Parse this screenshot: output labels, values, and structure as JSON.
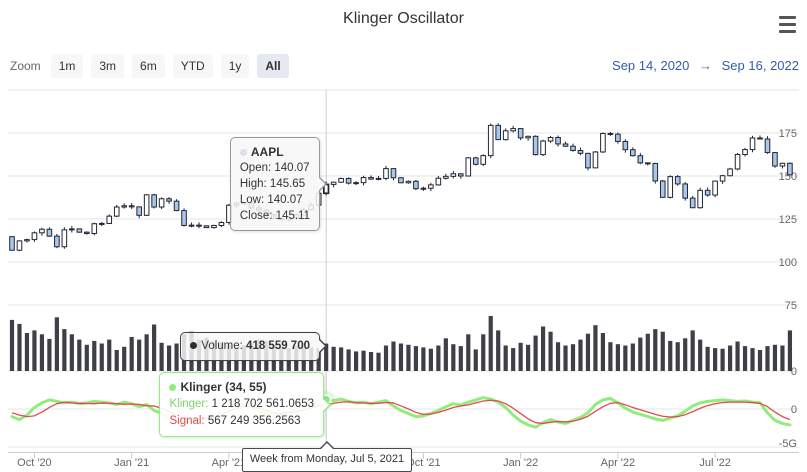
{
  "header": {
    "title": "Klinger Oscillator"
  },
  "toolbar": {
    "zoom_label": "Zoom",
    "buttons": [
      {
        "label": "1m",
        "selected": false
      },
      {
        "label": "3m",
        "selected": false
      },
      {
        "label": "6m",
        "selected": false
      },
      {
        "label": "YTD",
        "selected": false
      },
      {
        "label": "1y",
        "selected": false
      },
      {
        "label": "All",
        "selected": true
      }
    ],
    "range_from": "Sep 14, 2020",
    "range_separator": "→",
    "range_to": "Sep 16, 2022"
  },
  "tooltips": {
    "price": {
      "series": "AAPL",
      "open_label": "Open:",
      "open_value": "140.07",
      "high_label": "High:",
      "high_value": "145.65",
      "low_label": "Low:",
      "low_value": "140.07",
      "close_label": "Close:",
      "close_value": "145.11"
    },
    "volume": {
      "label": "Volume:",
      "value": "418 559 700"
    },
    "klinger": {
      "title": "Klinger (34, 55)",
      "klinger_label": "Klinger:",
      "klinger_value": "1 218 702 561.0653",
      "signal_label": "Signal:",
      "signal_value": "567 249 356.2563"
    },
    "xlabel": "Week from Monday, Jul 5, 2021"
  },
  "axes": {
    "price_labels": [
      {
        "text": "175",
        "value": 175
      },
      {
        "text": "150",
        "value": 150
      },
      {
        "text": "125",
        "value": 125
      },
      {
        "text": "100",
        "value": 100
      },
      {
        "text": "75",
        "value": 75
      }
    ],
    "volume_labels": [
      {
        "text": "0",
        "value": 0
      }
    ],
    "klinger_labels": [
      {
        "text": "0",
        "value": 0
      },
      {
        "text": "-5G",
        "value": -5
      }
    ],
    "x_labels": [
      {
        "text": "Oct '20",
        "week": 3
      },
      {
        "text": "Jan '21",
        "week": 16
      },
      {
        "text": "Apr '21",
        "week": 29
      },
      {
        "text": "Jul '21",
        "week": 42
      },
      {
        "text": "Oct '21",
        "week": 55
      },
      {
        "text": "Jan '22",
        "week": 68
      },
      {
        "text": "Apr '22",
        "week": 81
      },
      {
        "text": "Jul '22",
        "week": 94
      }
    ]
  },
  "colors": {
    "accent_blue": "#335cad",
    "candle_up_fill": "#ffffff",
    "candle_down_fill": "#a6c8ee",
    "candle_line": "#222633",
    "volume_bar": "#3f4047",
    "klinger_green": "#90ed7d",
    "signal_red": "#e24c4c",
    "grid": "#e6e6e6",
    "crosshair": "#cccccc",
    "axis_line": "#c7ccd6",
    "axis_label": "#666666"
  },
  "chart_data": {
    "type": "candlestick",
    "title": "Klinger Oscillator",
    "frequency": "weekly",
    "x_range": [
      "2020-09-14",
      "2022-09-16"
    ],
    "highlighted_index": 42,
    "highlighted_point": {
      "open": 140.07,
      "high": 145.65,
      "low": 140.07,
      "close": 145.11,
      "volume": 418559700,
      "klinger": 1218702561.0653,
      "signal": 567249356.2563
    },
    "price_axis_ticks": [
      75,
      100,
      125,
      150,
      175
    ],
    "klinger_axis_ticks": [
      0,
      -5000000000
    ],
    "series": [
      {
        "name": "AAPL",
        "type": "candlestick",
        "first_open": 114.72,
        "closes": [
          106.84,
          112.28,
          113.02,
          116.97,
          119.02,
          115.04,
          108.86,
          118.69,
          119.26,
          117.34,
          116.59,
          122.25,
          122.41,
          126.66,
          131.97,
          132.69,
          132.05,
          127.14,
          139.07,
          131.96,
          136.76,
          135.37,
          129.87,
          121.26,
          121.42,
          121.03,
          119.99,
          121.21,
          123.0,
          133.0,
          134.16,
          134.32,
          131.46,
          130.21,
          127.45,
          125.43,
          124.61,
          125.89,
          127.35,
          130.46,
          133.11,
          139.96,
          145.11,
          146.39,
          148.56,
          145.86,
          146.14,
          149.1,
          148.19,
          148.6,
          154.3,
          148.97,
          146.06,
          146.92,
          142.65,
          142.9,
          144.84,
          148.69,
          149.8,
          151.28,
          149.99,
          160.55,
          156.81,
          161.84,
          179.45,
          171.14,
          176.28,
          177.57,
          172.17,
          173.07,
          162.41,
          170.33,
          172.39,
          168.64,
          167.3,
          164.85,
          163.17,
          154.73,
          163.98,
          174.72,
          174.31,
          170.09,
          165.29,
          161.79,
          157.65,
          157.28,
          147.11,
          137.59,
          149.64,
          145.38,
          137.13,
          131.56,
          141.66,
          138.93,
          147.04,
          150.17,
          154.09,
          162.51,
          165.35,
          172.1,
          171.52,
          163.62,
          155.81,
          157.37,
          150.7
        ]
      },
      {
        "name": "Volume",
        "type": "column",
        "unit": "millions_of_shares",
        "values": [
          780,
          720,
          580,
          620,
          560,
          490,
          820,
          640,
          560,
          480,
          400,
          460,
          420,
          480,
          320,
          370,
          520,
          480,
          560,
          710,
          430,
          390,
          420,
          560,
          600,
          480,
          510,
          450,
          440,
          400,
          370,
          390,
          420,
          480,
          460,
          390,
          360,
          350,
          380,
          430,
          360,
          352,
          418.6,
          370,
          360,
          330,
          300,
          310,
          290,
          280,
          390,
          450,
          420,
          400,
          380,
          360,
          340,
          390,
          500,
          410,
          380,
          560,
          330,
          560,
          840,
          620,
          390,
          350,
          430,
          400,
          540,
          680,
          600,
          440,
          390,
          410,
          480,
          570,
          700,
          580,
          440,
          410,
          390,
          420,
          510,
          570,
          640,
          600,
          460,
          440,
          500,
          620,
          480,
          370,
          350,
          340,
          390,
          450,
          380,
          350,
          320,
          380,
          400,
          390,
          620
        ]
      },
      {
        "name": "Klinger (34, 55)",
        "type": "line",
        "unit": "billions",
        "values": [
          -1.0,
          -1.4,
          -0.8,
          0.2,
          0.8,
          1.2,
          1.0,
          0.8,
          0.9,
          0.7,
          0.8,
          1.0,
          0.9,
          0.8,
          0.6,
          0.9,
          0.7,
          0.3,
          0.6,
          -0.2,
          -0.6,
          -1.2,
          -1.6,
          -1.8,
          -1.5,
          -1.7,
          -1.3,
          -0.8,
          -0.2,
          0.4,
          0.7,
          0.5,
          0.2,
          -0.3,
          -0.7,
          -0.9,
          -0.6,
          -0.4,
          -0.1,
          0.3,
          0.6,
          0.9,
          1.2187,
          1.1,
          1.3,
          1.0,
          0.8,
          0.9,
          0.7,
          0.9,
          1.1,
          0.4,
          -0.2,
          -0.6,
          -1.0,
          -0.9,
          -0.6,
          -0.2,
          0.3,
          0.7,
          0.5,
          0.9,
          1.2,
          1.5,
          1.3,
          0.9,
          0.2,
          -0.8,
          -1.6,
          -2.1,
          -2.4,
          -1.8,
          -1.4,
          -1.7,
          -1.9,
          -1.5,
          -1.1,
          -0.5,
          0.6,
          1.2,
          1.4,
          0.8,
          0.1,
          -0.4,
          -0.7,
          -1.0,
          -1.3,
          -1.5,
          -1.2,
          -0.9,
          -0.3,
          0.4,
          0.8,
          1.0,
          1.1,
          1.2,
          1.1,
          1.0,
          1.05,
          0.9,
          0.8,
          -0.5,
          -1.5,
          -1.9,
          -2.1
        ]
      },
      {
        "name": "Signal",
        "type": "line",
        "unit": "billions",
        "values": [
          -0.5,
          -0.8,
          -1.0,
          -0.9,
          -0.4,
          0.2,
          0.7,
          0.9,
          0.8,
          0.75,
          0.72,
          0.7,
          0.78,
          0.76,
          0.7,
          0.62,
          0.66,
          0.6,
          0.42,
          0.4,
          0.1,
          -0.3,
          -0.8,
          -1.2,
          -1.4,
          -1.35,
          -1.3,
          -1.1,
          -0.75,
          -0.3,
          0.1,
          0.35,
          0.3,
          0.1,
          -0.2,
          -0.5,
          -0.6,
          -0.5,
          -0.35,
          -0.1,
          0.15,
          0.4,
          0.5672,
          0.75,
          0.9,
          0.95,
          0.85,
          0.8,
          0.75,
          0.75,
          0.85,
          0.8,
          0.4,
          0.0,
          -0.45,
          -0.7,
          -0.65,
          -0.45,
          -0.15,
          0.2,
          0.4,
          0.55,
          0.8,
          1.05,
          1.15,
          1.05,
          0.7,
          0.1,
          -0.6,
          -1.3,
          -1.8,
          -1.9,
          -1.75,
          -1.65,
          -1.7,
          -1.6,
          -1.35,
          -0.95,
          -0.3,
          0.3,
          0.75,
          0.85,
          0.55,
          0.2,
          -0.1,
          -0.4,
          -0.7,
          -0.95,
          -1.05,
          -1.0,
          -0.75,
          -0.35,
          0.1,
          0.45,
          0.7,
          0.85,
          0.9,
          0.9,
          0.9,
          0.85,
          0.75,
          0.3,
          -0.4,
          -1.0,
          -1.4
        ]
      }
    ]
  }
}
